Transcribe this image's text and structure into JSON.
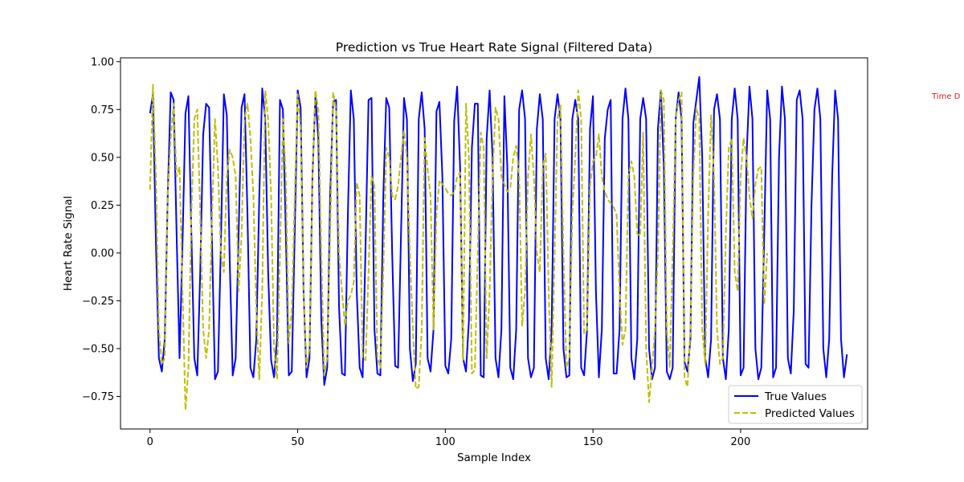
{
  "chart_data": {
    "type": "line",
    "title": "Prediction vs True Heart Rate Signal (Filtered Data)",
    "xlabel": "Sample Index",
    "ylabel": "Heart Rate Signal",
    "xlim": [
      -10,
      243
    ],
    "ylim": [
      -0.92,
      1.02
    ],
    "xticks": [
      0,
      50,
      100,
      150,
      200
    ],
    "xtick_labels": [
      "0",
      "50",
      "100",
      "150",
      "200"
    ],
    "yticks": [
      -0.75,
      -0.5,
      -0.25,
      0.0,
      0.25,
      0.5,
      0.75,
      1.0
    ],
    "ytick_labels": [
      "−0.75",
      "−0.50",
      "−0.25",
      "0.00",
      "0.25",
      "0.50",
      "0.75",
      "1.00"
    ],
    "grid": false,
    "legend_position": "lower-right",
    "annotation": {
      "text": "Time D",
      "color": "#e31a1c"
    },
    "series": [
      {
        "name": "True Values",
        "color": "#0000ff",
        "style": "solid",
        "x_start": 0,
        "values": [
          0.73,
          0.83,
          0.05,
          -0.55,
          -0.62,
          -0.45,
          0.3,
          0.84,
          0.8,
          0.1,
          -0.55,
          0.05,
          0.73,
          0.82,
          0.1,
          -0.55,
          -0.64,
          -0.1,
          0.62,
          0.78,
          0.76,
          0.05,
          -0.66,
          -0.62,
          0.05,
          0.83,
          0.72,
          -0.05,
          -0.64,
          -0.55,
          0.1,
          0.76,
          0.83,
          0.2,
          -0.6,
          -0.65,
          -0.45,
          0.3,
          0.86,
          0.7,
          -0.1,
          -0.56,
          -0.65,
          -0.45,
          0.8,
          0.75,
          0.1,
          -0.64,
          -0.62,
          0.1,
          0.85,
          0.76,
          -0.2,
          -0.65,
          -0.55,
          0.4,
          0.82,
          0.6,
          -0.35,
          -0.69,
          -0.6,
          0.3,
          0.79,
          0.8,
          -0.28,
          -0.63,
          -0.64,
          0.2,
          0.85,
          0.7,
          -0.2,
          -0.6,
          -0.65,
          0.05,
          0.8,
          0.81,
          -0.4,
          -0.63,
          -0.64,
          0.3,
          0.81,
          0.76,
          0.0,
          -0.59,
          -0.6,
          0.1,
          0.81,
          0.7,
          -0.5,
          -0.67,
          -0.58,
          0.7,
          0.84,
          0.65,
          -0.55,
          -0.62,
          -0.4,
          0.74,
          0.79,
          0.4,
          -0.59,
          -0.63,
          -0.45,
          0.69,
          0.87,
          0.45,
          -0.55,
          -0.62,
          -0.35,
          0.55,
          0.78,
          0.78,
          -0.64,
          -0.65,
          0.6,
          0.85,
          0.5,
          -0.55,
          -0.65,
          -0.4,
          0.82,
          0.45,
          -0.6,
          -0.66,
          -0.4,
          0.75,
          0.85,
          0.7,
          -0.55,
          -0.65,
          -0.6,
          0.65,
          0.83,
          0.7,
          -0.55,
          -0.66,
          -0.4,
          0.7,
          0.83,
          0.7,
          -0.5,
          -0.65,
          -0.64,
          0.7,
          0.8,
          0.7,
          -0.6,
          -0.64,
          -0.4,
          0.65,
          0.82,
          -0.2,
          -0.65,
          -0.4,
          0.6,
          0.75,
          0.8,
          -0.63,
          -0.63,
          -0.4,
          0.7,
          0.86,
          0.7,
          -0.55,
          -0.66,
          -0.45,
          0.7,
          0.81,
          0.7,
          -0.5,
          -0.66,
          -0.6,
          0.65,
          0.85,
          0.45,
          -0.62,
          -0.66,
          -0.6,
          0.7,
          0.84,
          0.7,
          -0.57,
          -0.62,
          -0.45,
          0.68,
          0.8,
          0.92,
          0.5,
          -0.55,
          -0.65,
          -0.45,
          0.75,
          0.83,
          0.7,
          -0.55,
          -0.66,
          -0.4,
          0.7,
          0.86,
          0.7,
          -0.64,
          -0.6,
          0.5,
          0.87,
          0.7,
          -0.5,
          -0.66,
          -0.6,
          0.1,
          0.85,
          0.7,
          -0.65,
          -0.6,
          0.5,
          0.87,
          0.7,
          -0.55,
          -0.63,
          -0.3,
          0.8,
          0.85,
          0.7,
          -0.58,
          -0.6,
          0.25,
          0.75,
          0.86,
          0.7,
          -0.5,
          -0.65,
          -0.45,
          0.4,
          0.85,
          0.7,
          -0.45,
          -0.65,
          -0.53
        ]
      },
      {
        "name": "Predicted Values",
        "color": "#bfbf00",
        "style": "dashed",
        "x_start": 0,
        "values": [
          0.33,
          0.88,
          0.4,
          -0.4,
          -0.58,
          -0.55,
          0.3,
          0.6,
          0.78,
          0.4,
          0.45,
          -0.2,
          -0.82,
          -0.6,
          0.2,
          0.7,
          0.75,
          0.2,
          -0.4,
          -0.55,
          -0.4,
          0.2,
          0.7,
          0.45,
          0.0,
          -0.1,
          0.4,
          0.54,
          0.5,
          0.4,
          -0.2,
          0.1,
          0.7,
          0.78,
          0.6,
          0.3,
          -0.3,
          -0.66,
          -0.2,
          0.85,
          0.7,
          0.3,
          -0.5,
          -0.66,
          0.0,
          0.7,
          0.4,
          -0.47,
          -0.3,
          0.3,
          0.83,
          0.65,
          -0.2,
          -0.6,
          -0.5,
          0.4,
          0.85,
          0.75,
          0.0,
          -0.64,
          -0.55,
          0.1,
          0.84,
          0.75,
          0.0,
          -0.2,
          -0.38,
          -0.25,
          -0.22,
          -0.15,
          0.37,
          0.3,
          -0.55,
          -0.56,
          -0.1,
          0.4,
          0.35,
          -0.55,
          -0.6,
          -0.1,
          0.55,
          0.5,
          0.3,
          0.28,
          0.35,
          0.5,
          0.64,
          0.5,
          0.0,
          -0.4,
          -0.71,
          -0.7,
          -0.4,
          0.6,
          0.44,
          0.3,
          -0.4,
          0.2,
          0.38,
          0.36,
          0.34,
          0.31,
          0.3,
          0.32,
          0.4,
          0.42,
          -0.56,
          0.78,
          0.5,
          -0.63,
          -0.61,
          0.0,
          0.63,
          0.55,
          -0.55,
          -0.2,
          0.4,
          0.76,
          0.7,
          0.4,
          0.36,
          0.32,
          0.34,
          0.5,
          0.56,
          0.4,
          -0.38,
          -0.2,
          0.4,
          0.62,
          0.4,
          0.0,
          -0.1,
          0.45,
          0.52,
          -0.2,
          -0.7,
          0.0,
          0.7,
          0.78,
          0.0,
          -0.6,
          -0.55,
          0.2,
          0.5,
          0.85,
          0.7,
          -0.42,
          -0.4,
          0.35,
          0.48,
          0.5,
          0.62,
          0.4,
          0.32,
          0.28,
          0.26,
          0.24,
          0.2,
          -0.2,
          -0.48,
          -0.4,
          0.4,
          0.48,
          0.4,
          0.1,
          0.09,
          0.63,
          -0.5,
          -0.78,
          -0.6,
          -0.4,
          0.0,
          0.85,
          0.8,
          -0.4,
          -0.6,
          0.0,
          0.7,
          0.8,
          0.84,
          -0.65,
          -0.7,
          -0.4,
          0.4,
          0.76,
          0.7,
          -0.4,
          -0.58,
          0.2,
          0.72,
          0.4,
          -0.4,
          -0.58,
          -0.55,
          0.1,
          0.55,
          0.6,
          -0.1,
          -0.2,
          0.4,
          0.6,
          0.5,
          0.3,
          0.18,
          0.36,
          0.44,
          0.45,
          -0.27,
          0.0
        ]
      }
    ]
  }
}
